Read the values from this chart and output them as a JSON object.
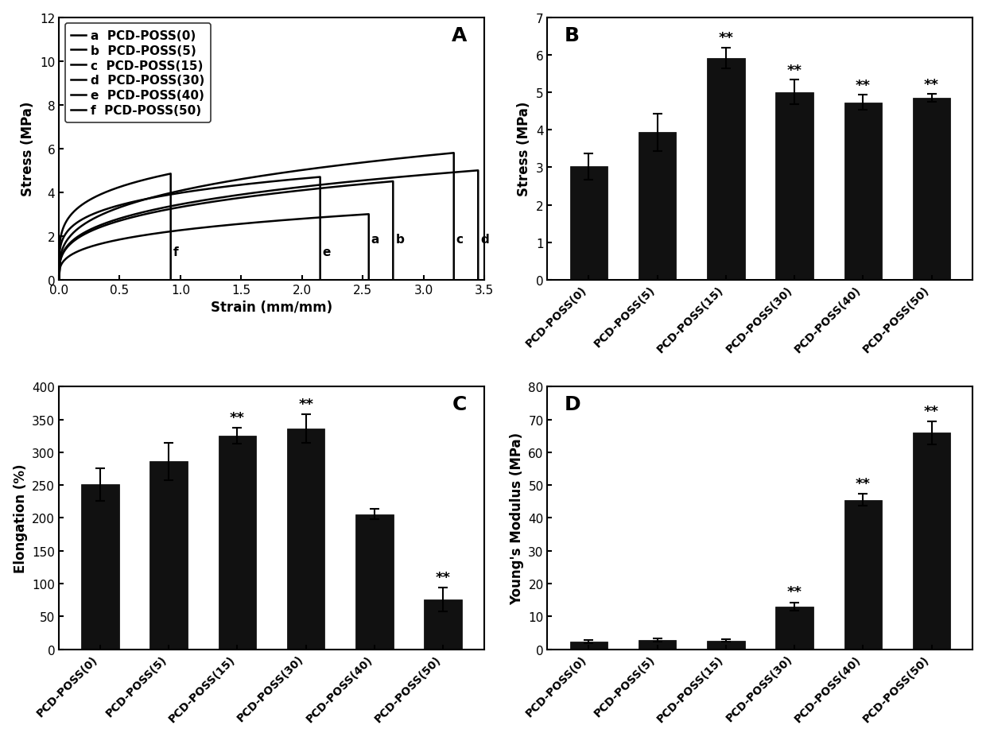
{
  "panel_A": {
    "label": "A",
    "xlabel": "Strain (mm/mm)",
    "ylabel": "Stress (MPa)",
    "xlim": [
      0.0,
      3.5
    ],
    "ylim": [
      0,
      12
    ],
    "xticks": [
      0.0,
      0.5,
      1.0,
      1.5,
      2.0,
      2.5,
      3.0,
      3.5
    ],
    "yticks": [
      0,
      2,
      4,
      6,
      8,
      10,
      12
    ],
    "legend_labels": [
      "a  PCD-POSS(0)",
      "b  PCD-POSS(5)",
      "c  PCD-POSS(15)",
      "d  PCD-POSS(30)",
      "e  PCD-POSS(40)",
      "f  PCD-POSS(50)"
    ]
  },
  "panel_B": {
    "label": "B",
    "ylabel": "Stress (MPa)",
    "ylim": [
      0,
      7
    ],
    "yticks": [
      0,
      1,
      2,
      3,
      4,
      5,
      6,
      7
    ],
    "categories": [
      "PCD-POSS(0)",
      "PCD-POSS(5)",
      "PCD-POSS(15)",
      "PCD-POSS(30)",
      "PCD-POSS(40)",
      "PCD-POSS(50)"
    ],
    "values": [
      3.02,
      3.93,
      5.91,
      5.01,
      4.73,
      4.85
    ],
    "errors": [
      0.35,
      0.5,
      0.28,
      0.32,
      0.2,
      0.1
    ],
    "significance": [
      false,
      false,
      true,
      true,
      true,
      true
    ]
  },
  "panel_C": {
    "label": "C",
    "ylabel": "Elongation (%)",
    "ylim": [
      0,
      400
    ],
    "yticks": [
      0,
      50,
      100,
      150,
      200,
      250,
      300,
      350,
      400
    ],
    "categories": [
      "PCD-POSS(0)",
      "PCD-POSS(5)",
      "PCD-POSS(15)",
      "PCD-POSS(30)",
      "PCD-POSS(40)",
      "PCD-POSS(50)"
    ],
    "values": [
      251,
      286,
      325,
      336,
      206,
      76
    ],
    "errors": [
      25,
      28,
      12,
      22,
      8,
      18
    ],
    "significance": [
      false,
      false,
      true,
      true,
      false,
      true
    ]
  },
  "panel_D": {
    "label": "D",
    "ylabel": "Young's Modulus (MPa)",
    "ylim": [
      0,
      80
    ],
    "yticks": [
      0,
      10,
      20,
      30,
      40,
      50,
      60,
      70,
      80
    ],
    "categories": [
      "PCD-POSS(0)",
      "PCD-POSS(5)",
      "PCD-POSS(15)",
      "PCD-POSS(30)",
      "PCD-POSS(40)",
      "PCD-POSS(50)"
    ],
    "values": [
      2.3,
      2.8,
      2.6,
      13.0,
      45.5,
      66.0
    ],
    "errors": [
      0.4,
      0.5,
      0.4,
      1.3,
      1.8,
      3.5
    ],
    "significance": [
      false,
      false,
      false,
      true,
      true,
      true
    ]
  },
  "bar_color": "#111111",
  "bar_width": 0.55,
  "tick_fontsize": 11,
  "label_fontsize": 12,
  "legend_fontsize": 11,
  "panel_label_fontsize": 18
}
